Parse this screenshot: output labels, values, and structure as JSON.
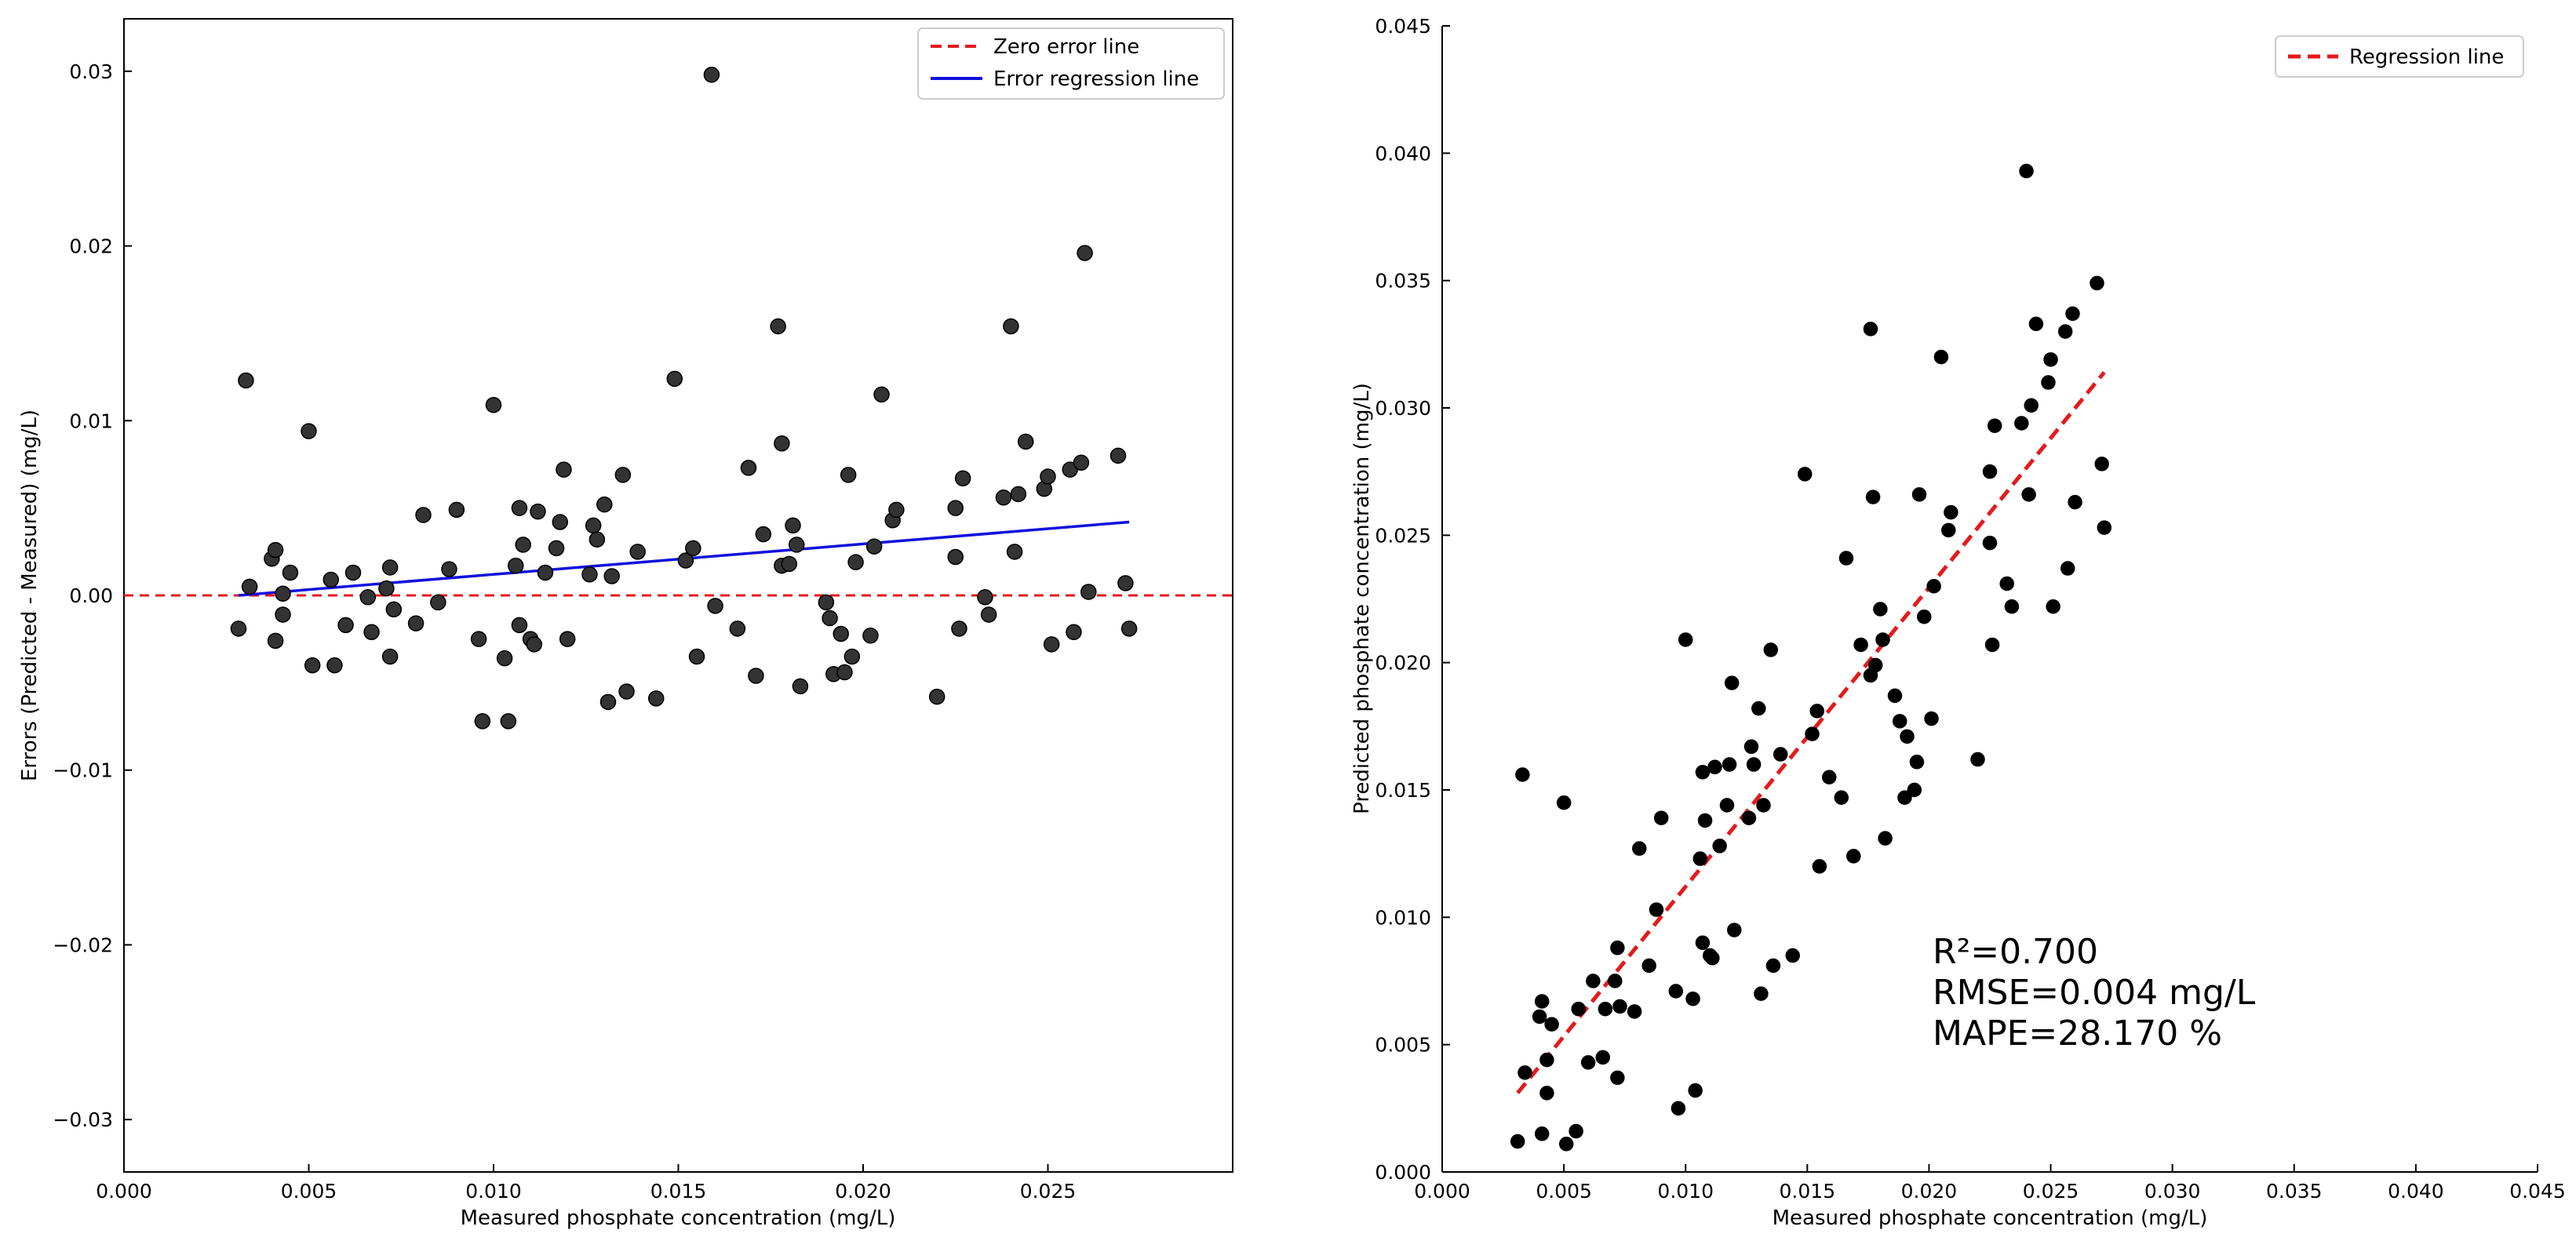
{
  "chart_data": [
    {
      "type": "scatter",
      "panel": "left",
      "title": "",
      "xlabel": "Measured phosphate concentration (mg/L)",
      "ylabel": "Errors (Predicted - Measured) (mg/L)",
      "xlim": [
        0.0,
        0.03
      ],
      "ylim": [
        -0.033,
        0.033
      ],
      "xticks": [
        "0.000",
        "0.005",
        "0.010",
        "0.015",
        "0.020",
        "0.025"
      ],
      "yticks": [
        "−0.03",
        "−0.02",
        "−0.01",
        "0.00",
        "0.01",
        "0.02",
        "0.03"
      ],
      "grid": false,
      "legend_position": "top-right",
      "legend": [
        {
          "label": "Zero error line",
          "color": "#e41a1c",
          "style": "dashed"
        },
        {
          "label": "Error regression line",
          "color": "#1111dd",
          "style": "solid"
        }
      ],
      "point_color": "#333333",
      "zero_line": 0.0,
      "regression": {
        "x": [
          0.0031,
          0.0272
        ],
        "y": [
          0.0,
          0.0042
        ]
      },
      "points": [
        [
          0.0031,
          -0.0019
        ],
        [
          0.0033,
          0.0123
        ],
        [
          0.0034,
          0.0005
        ],
        [
          0.004,
          0.0021
        ],
        [
          0.0041,
          0.0026
        ],
        [
          0.0041,
          -0.0026
        ],
        [
          0.0043,
          -0.0011
        ],
        [
          0.0043,
          0.0001
        ],
        [
          0.0045,
          0.0013
        ],
        [
          0.005,
          0.0094
        ],
        [
          0.0051,
          -0.004
        ],
        [
          0.0056,
          0.0009
        ],
        [
          0.0057,
          -0.004
        ],
        [
          0.006,
          -0.0017
        ],
        [
          0.0062,
          0.0013
        ],
        [
          0.0066,
          -0.0001
        ],
        [
          0.0067,
          -0.0021
        ],
        [
          0.0071,
          0.0004
        ],
        [
          0.0072,
          0.0016
        ],
        [
          0.0072,
          -0.0035
        ],
        [
          0.0073,
          -0.0008
        ],
        [
          0.0079,
          -0.0016
        ],
        [
          0.0081,
          0.0046
        ],
        [
          0.0085,
          -0.0004
        ],
        [
          0.0088,
          0.0015
        ],
        [
          0.009,
          0.0049
        ],
        [
          0.0096,
          -0.0025
        ],
        [
          0.0097,
          -0.0072
        ],
        [
          0.01,
          0.0109
        ],
        [
          0.0103,
          -0.0036
        ],
        [
          0.0104,
          -0.0072
        ],
        [
          0.0106,
          0.0017
        ],
        [
          0.0107,
          0.005
        ],
        [
          0.0107,
          -0.0017
        ],
        [
          0.0108,
          0.0029
        ],
        [
          0.011,
          -0.0025
        ],
        [
          0.0111,
          -0.0028
        ],
        [
          0.0112,
          0.0048
        ],
        [
          0.0114,
          0.0013
        ],
        [
          0.0117,
          0.0027
        ],
        [
          0.0118,
          0.0042
        ],
        [
          0.0119,
          0.0072
        ],
        [
          0.012,
          -0.0025
        ],
        [
          0.0126,
          0.0012
        ],
        [
          0.0127,
          0.004
        ],
        [
          0.0128,
          0.0032
        ],
        [
          0.013,
          0.0052
        ],
        [
          0.0131,
          -0.0061
        ],
        [
          0.0132,
          0.0011
        ],
        [
          0.0135,
          0.0069
        ],
        [
          0.0136,
          -0.0055
        ],
        [
          0.0139,
          0.0025
        ],
        [
          0.0144,
          -0.0059
        ],
        [
          0.0149,
          0.0124
        ],
        [
          0.0152,
          0.002
        ],
        [
          0.0154,
          0.0027
        ],
        [
          0.0155,
          -0.0035
        ],
        [
          0.0159,
          0.0298
        ],
        [
          0.016,
          -0.0006
        ],
        [
          0.0166,
          -0.0019
        ],
        [
          0.0169,
          0.0073
        ],
        [
          0.0171,
          -0.0046
        ],
        [
          0.0173,
          0.0035
        ],
        [
          0.0177,
          0.0154
        ],
        [
          0.0178,
          0.0087
        ],
        [
          0.0178,
          0.0017
        ],
        [
          0.018,
          0.0018
        ],
        [
          0.0181,
          0.004
        ],
        [
          0.0182,
          0.0029
        ],
        [
          0.0183,
          -0.0052
        ],
        [
          0.019,
          -0.0004
        ],
        [
          0.0191,
          -0.0013
        ],
        [
          0.0192,
          -0.0045
        ],
        [
          0.0194,
          -0.0022
        ],
        [
          0.0195,
          -0.0044
        ],
        [
          0.0196,
          0.0069
        ],
        [
          0.0197,
          -0.0035
        ],
        [
          0.0198,
          0.0019
        ],
        [
          0.0202,
          -0.0023
        ],
        [
          0.0203,
          0.0028
        ],
        [
          0.0205,
          0.0115
        ],
        [
          0.0208,
          0.0043
        ],
        [
          0.0209,
          0.0049
        ],
        [
          0.022,
          -0.0058
        ],
        [
          0.0225,
          0.0022
        ],
        [
          0.0225,
          0.005
        ],
        [
          0.0226,
          -0.0019
        ],
        [
          0.0227,
          0.0067
        ],
        [
          0.0233,
          -0.0001
        ],
        [
          0.0234,
          -0.0011
        ],
        [
          0.0238,
          0.0056
        ],
        [
          0.024,
          0.0154
        ],
        [
          0.0241,
          0.0025
        ],
        [
          0.0242,
          0.0058
        ],
        [
          0.0244,
          0.0088
        ],
        [
          0.0249,
          0.0061
        ],
        [
          0.025,
          0.0068
        ],
        [
          0.0251,
          -0.0028
        ],
        [
          0.0256,
          0.0072
        ],
        [
          0.0257,
          -0.0021
        ],
        [
          0.0259,
          0.0076
        ],
        [
          0.026,
          0.0196
        ],
        [
          0.0261,
          0.0002
        ],
        [
          0.0269,
          0.008
        ],
        [
          0.0271,
          0.0007
        ],
        [
          0.0272,
          -0.0019
        ]
      ]
    },
    {
      "type": "scatter",
      "panel": "right",
      "title": "",
      "xlabel": "Measured phosphate concentration (mg/L)",
      "ylabel": "Predicted phosphate concentration (mg/L)",
      "xlim": [
        0.0,
        0.045
      ],
      "ylim": [
        0.0,
        0.045
      ],
      "xticks": [
        "0.000",
        "0.005",
        "0.010",
        "0.015",
        "0.020",
        "0.025",
        "0.030",
        "0.035",
        "0.040",
        "0.045"
      ],
      "yticks": [
        "0.000",
        "0.005",
        "0.010",
        "0.015",
        "0.020",
        "0.025",
        "0.030",
        "0.035",
        "0.040",
        "0.045"
      ],
      "grid": false,
      "legend_position": "top-right",
      "legend": [
        {
          "label": "Regression line",
          "color": "#e41a1c",
          "style": "dashed"
        }
      ],
      "point_color": "#000000",
      "regression": {
        "x": [
          0.0031,
          0.0272
        ],
        "y": [
          0.0031,
          0.0314
        ]
      },
      "annotations": [
        "R²=0.700",
        "RMSE=0.004 mg/L",
        "MAPE=28.170 %"
      ],
      "points": [
        [
          0.0031,
          0.0012
        ],
        [
          0.0033,
          0.0156
        ],
        [
          0.0034,
          0.0039
        ],
        [
          0.004,
          0.0061
        ],
        [
          0.0041,
          0.0067
        ],
        [
          0.0041,
          0.0015
        ],
        [
          0.0043,
          0.0031
        ],
        [
          0.0043,
          0.0044
        ],
        [
          0.0045,
          0.0058
        ],
        [
          0.005,
          0.0145
        ],
        [
          0.0051,
          0.0011
        ],
        [
          0.0055,
          0.0016
        ],
        [
          0.0056,
          0.0064
        ],
        [
          0.006,
          0.0043
        ],
        [
          0.0062,
          0.0075
        ],
        [
          0.0066,
          0.0045
        ],
        [
          0.0067,
          0.0064
        ],
        [
          0.0071,
          0.0075
        ],
        [
          0.0072,
          0.0088
        ],
        [
          0.0072,
          0.0037
        ],
        [
          0.0073,
          0.0065
        ],
        [
          0.0079,
          0.0063
        ],
        [
          0.0081,
          0.0127
        ],
        [
          0.0085,
          0.0081
        ],
        [
          0.0088,
          0.0103
        ],
        [
          0.009,
          0.0139
        ],
        [
          0.0096,
          0.0071
        ],
        [
          0.0097,
          0.0025
        ],
        [
          0.01,
          0.0209
        ],
        [
          0.0103,
          0.0068
        ],
        [
          0.0104,
          0.0032
        ],
        [
          0.0106,
          0.0123
        ],
        [
          0.0107,
          0.0157
        ],
        [
          0.0107,
          0.009
        ],
        [
          0.0108,
          0.0138
        ],
        [
          0.011,
          0.0085
        ],
        [
          0.0111,
          0.0084
        ],
        [
          0.0112,
          0.0159
        ],
        [
          0.0114,
          0.0128
        ],
        [
          0.0117,
          0.0144
        ],
        [
          0.0118,
          0.016
        ],
        [
          0.0119,
          0.0192
        ],
        [
          0.012,
          0.0095
        ],
        [
          0.0126,
          0.0139
        ],
        [
          0.0127,
          0.0167
        ],
        [
          0.0128,
          0.016
        ],
        [
          0.013,
          0.0182
        ],
        [
          0.0131,
          0.007
        ],
        [
          0.0132,
          0.0144
        ],
        [
          0.0135,
          0.0205
        ],
        [
          0.0136,
          0.0081
        ],
        [
          0.0139,
          0.0164
        ],
        [
          0.0144,
          0.0085
        ],
        [
          0.0149,
          0.0274
        ],
        [
          0.0152,
          0.0172
        ],
        [
          0.0154,
          0.0181
        ],
        [
          0.0155,
          0.012
        ],
        [
          0.0159,
          0.0155
        ],
        [
          0.0164,
          0.0147
        ],
        [
          0.0166,
          0.0241
        ],
        [
          0.0169,
          0.0124
        ],
        [
          0.0172,
          0.0207
        ],
        [
          0.0176,
          0.0331
        ],
        [
          0.0176,
          0.0195
        ],
        [
          0.0177,
          0.0265
        ],
        [
          0.0178,
          0.0199
        ],
        [
          0.018,
          0.0221
        ],
        [
          0.0181,
          0.0209
        ],
        [
          0.0182,
          0.0131
        ],
        [
          0.0186,
          0.0187
        ],
        [
          0.0188,
          0.0177
        ],
        [
          0.019,
          0.0147
        ],
        [
          0.0191,
          0.0171
        ],
        [
          0.0194,
          0.015
        ],
        [
          0.0195,
          0.0161
        ],
        [
          0.0196,
          0.0266
        ],
        [
          0.0198,
          0.0218
        ],
        [
          0.0201,
          0.0178
        ],
        [
          0.0202,
          0.023
        ],
        [
          0.0205,
          0.032
        ],
        [
          0.0208,
          0.0252
        ],
        [
          0.0209,
          0.0259
        ],
        [
          0.022,
          0.0162
        ],
        [
          0.0225,
          0.0275
        ],
        [
          0.0225,
          0.0247
        ],
        [
          0.0226,
          0.0207
        ],
        [
          0.0227,
          0.0293
        ],
        [
          0.0232,
          0.0231
        ],
        [
          0.0234,
          0.0222
        ],
        [
          0.0238,
          0.0294
        ],
        [
          0.024,
          0.0393
        ],
        [
          0.0241,
          0.0266
        ],
        [
          0.0242,
          0.0301
        ],
        [
          0.0244,
          0.0333
        ],
        [
          0.0249,
          0.031
        ],
        [
          0.025,
          0.0319
        ],
        [
          0.0251,
          0.0222
        ],
        [
          0.0256,
          0.033
        ],
        [
          0.0257,
          0.0237
        ],
        [
          0.0259,
          0.0337
        ],
        [
          0.026,
          0.0263
        ],
        [
          0.0269,
          0.0349
        ],
        [
          0.0271,
          0.0278
        ],
        [
          0.0272,
          0.0253
        ]
      ]
    }
  ]
}
